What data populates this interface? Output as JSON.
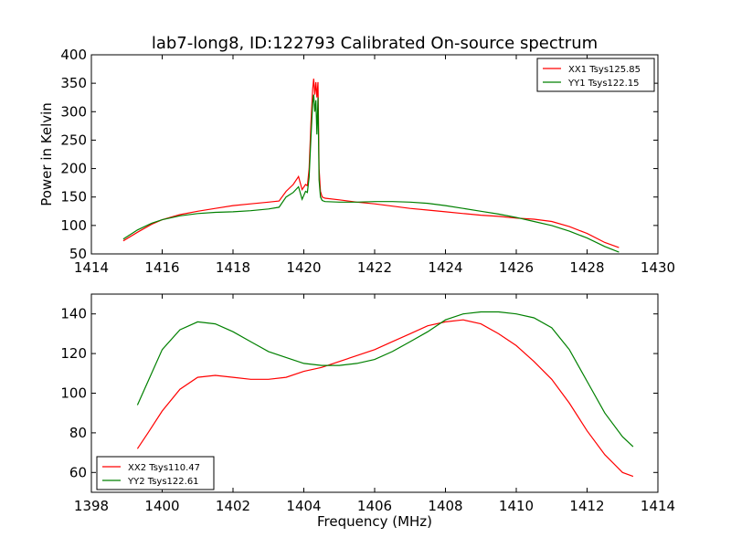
{
  "figure": {
    "title": "lab7-long8, ID:122793 Calibrated On-source spectrum",
    "xlabel": "Frequency (MHz)"
  },
  "colors": {
    "red": "#ff0000",
    "green": "#008000"
  },
  "chart_data": [
    {
      "type": "line",
      "title": "lab7-long8, ID:122793 Calibrated On-source spectrum",
      "xlabel": "",
      "ylabel": "Power in Kelvin",
      "xlim": [
        1414,
        1430
      ],
      "ylim": [
        50,
        400
      ],
      "xticks": [
        "1414",
        "1416",
        "1418",
        "1420",
        "1422",
        "1424",
        "1426",
        "1428",
        "1430"
      ],
      "yticks": [
        "50",
        "100",
        "150",
        "200",
        "250",
        "300",
        "350",
        "400"
      ],
      "legend_position": "top-right",
      "series": [
        {
          "name": "XX1 Tsys125.85",
          "color": "#ff0000",
          "x": [
            1414.9,
            1415.3,
            1415.7,
            1416.0,
            1416.5,
            1417.0,
            1417.5,
            1418.0,
            1418.5,
            1419.0,
            1419.3,
            1419.5,
            1419.7,
            1419.85,
            1419.95,
            1420.05,
            1420.1,
            1420.15,
            1420.2,
            1420.25,
            1420.28,
            1420.31,
            1420.34,
            1420.37,
            1420.4,
            1420.43,
            1420.47,
            1420.52,
            1420.6,
            1421.0,
            1421.5,
            1422.0,
            1422.5,
            1423.0,
            1423.5,
            1424.0,
            1424.5,
            1425.0,
            1425.5,
            1426.0,
            1426.5,
            1427.0,
            1427.5,
            1428.0,
            1428.5,
            1428.9
          ],
          "y": [
            73,
            88,
            102,
            110,
            119,
            125,
            130,
            135,
            138,
            141,
            143,
            160,
            172,
            186,
            163,
            172,
            170,
            200,
            280,
            340,
            358,
            330,
            352,
            325,
            352,
            200,
            160,
            150,
            148,
            145,
            141,
            138,
            134,
            130,
            127,
            124,
            121,
            118,
            116,
            113,
            111,
            107,
            98,
            86,
            70,
            61
          ]
        },
        {
          "name": "YY1 Tsys122.15",
          "color": "#008000",
          "x": [
            1414.9,
            1415.3,
            1415.7,
            1416.0,
            1416.5,
            1417.0,
            1417.5,
            1418.0,
            1418.5,
            1419.0,
            1419.3,
            1419.5,
            1419.7,
            1419.85,
            1419.95,
            1420.05,
            1420.1,
            1420.15,
            1420.2,
            1420.25,
            1420.28,
            1420.31,
            1420.34,
            1420.37,
            1420.4,
            1420.43,
            1420.47,
            1420.52,
            1420.6,
            1421.0,
            1421.5,
            1422.0,
            1422.5,
            1423.0,
            1423.5,
            1424.0,
            1424.5,
            1425.0,
            1425.5,
            1426.0,
            1426.5,
            1427.0,
            1427.5,
            1428.0,
            1428.5,
            1428.9
          ],
          "y": [
            76,
            92,
            104,
            110,
            117,
            121,
            123,
            124,
            126,
            129,
            132,
            150,
            158,
            168,
            146,
            160,
            158,
            185,
            255,
            315,
            330,
            300,
            320,
            260,
            325,
            180,
            150,
            144,
            142,
            141,
            141,
            142,
            142,
            141,
            139,
            135,
            130,
            125,
            120,
            114,
            107,
            100,
            90,
            78,
            63,
            53
          ]
        }
      ]
    },
    {
      "type": "line",
      "title": "",
      "xlabel": "Frequency (MHz)",
      "ylabel": "",
      "xlim": [
        1398,
        1414
      ],
      "ylim": [
        50,
        150
      ],
      "xticks": [
        "1398",
        "1400",
        "1402",
        "1404",
        "1406",
        "1408",
        "1410",
        "1412",
        "1414"
      ],
      "yticks": [
        "60",
        "80",
        "100",
        "120",
        "140"
      ],
      "yticks_values": [
        60,
        80,
        100,
        120,
        140
      ],
      "legend_position": "bottom-left",
      "series": [
        {
          "name": "XX2 Tsys110.47",
          "color": "#ff0000",
          "x": [
            1399.3,
            1399.6,
            1400.0,
            1400.5,
            1401.0,
            1401.5,
            1402.0,
            1402.5,
            1403.0,
            1403.5,
            1404.0,
            1404.5,
            1405.0,
            1405.5,
            1406.0,
            1406.5,
            1407.0,
            1407.5,
            1408.0,
            1408.5,
            1409.0,
            1409.5,
            1410.0,
            1410.5,
            1411.0,
            1411.5,
            1412.0,
            1412.5,
            1413.0,
            1413.3
          ],
          "y": [
            72,
            80,
            91,
            102,
            108,
            109,
            108,
            107,
            107,
            108,
            111,
            113,
            116,
            119,
            122,
            126,
            130,
            134,
            136,
            137,
            135,
            130,
            124,
            116,
            107,
            95,
            81,
            69,
            60,
            58
          ]
        },
        {
          "name": "YY2 Tsys122.61",
          "color": "#008000",
          "x": [
            1399.3,
            1399.6,
            1400.0,
            1400.5,
            1401.0,
            1401.5,
            1402.0,
            1402.5,
            1403.0,
            1403.5,
            1404.0,
            1404.5,
            1405.0,
            1405.5,
            1406.0,
            1406.5,
            1407.0,
            1407.5,
            1408.0,
            1408.5,
            1409.0,
            1409.5,
            1410.0,
            1410.5,
            1411.0,
            1411.5,
            1412.0,
            1412.5,
            1413.0,
            1413.3
          ],
          "y": [
            94,
            106,
            122,
            132,
            136,
            135,
            131,
            126,
            121,
            118,
            115,
            114,
            114,
            115,
            117,
            121,
            126,
            131,
            137,
            140,
            141,
            141,
            140,
            138,
            133,
            122,
            106,
            90,
            78,
            73
          ]
        }
      ]
    }
  ]
}
